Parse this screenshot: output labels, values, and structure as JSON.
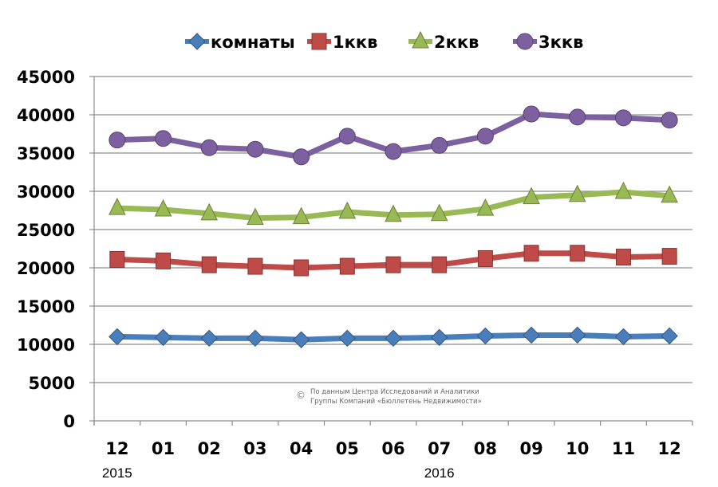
{
  "chart_data": {
    "type": "line",
    "title": "",
    "xlabel": "",
    "ylabel": "",
    "categories": [
      "12",
      "01",
      "02",
      "03",
      "04",
      "05",
      "06",
      "07",
      "08",
      "09",
      "10",
      "11",
      "12"
    ],
    "year_labels": [
      {
        "category_index": 0,
        "label": "2015"
      },
      {
        "category_index": 7,
        "label": "2016"
      }
    ],
    "ylim": [
      0,
      45000
    ],
    "yticks": [
      0,
      5000,
      10000,
      15000,
      20000,
      25000,
      30000,
      35000,
      40000,
      45000
    ],
    "ytick_labels": [
      "0",
      "5000",
      "10000",
      "15000",
      "20000",
      "25000",
      "30000",
      "35000",
      "40000",
      "45000"
    ],
    "grid": true,
    "legend_position": "top",
    "series": [
      {
        "name": "комнаты",
        "color": "#4a7ebb",
        "marker": "diamond",
        "values": [
          11000,
          10900,
          10800,
          10800,
          10600,
          10800,
          10800,
          10900,
          11100,
          11200,
          11200,
          11000,
          11100
        ]
      },
      {
        "name": "1ккв",
        "color": "#be4b48",
        "marker": "square",
        "values": [
          21100,
          20900,
          20400,
          20200,
          20000,
          20200,
          20400,
          20400,
          21200,
          21900,
          21900,
          21400,
          21500
        ]
      },
      {
        "name": "2ккв",
        "color": "#98b954",
        "marker": "triangle",
        "values": [
          27800,
          27600,
          27100,
          26500,
          26600,
          27300,
          26900,
          27000,
          27700,
          29200,
          29500,
          29900,
          29400
        ]
      },
      {
        "name": "3ккв",
        "color": "#7d60a0",
        "marker": "circle",
        "values": [
          36700,
          36900,
          35700,
          35500,
          34500,
          37200,
          35200,
          36000,
          37200,
          40100,
          39700,
          39600,
          39300
        ]
      }
    ],
    "annotation": {
      "symbol": "©",
      "lines": [
        "По данным Центра Исследований и Аналитики",
        "Группы Компаний «Бюллетень Недвижимости»"
      ]
    }
  }
}
